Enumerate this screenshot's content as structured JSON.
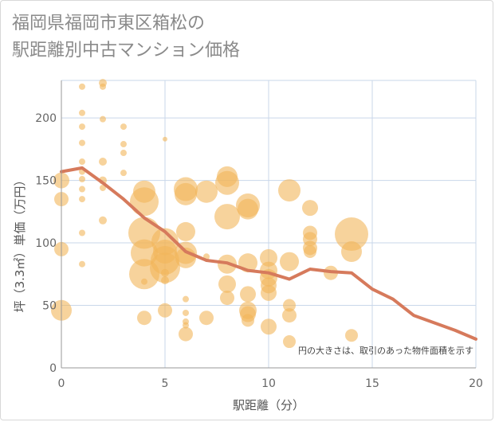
{
  "title_line1": "福岡県福岡市東区箱松の",
  "title_line2": "駅距離別中古マンション価格",
  "chart_data": {
    "type": "scatter",
    "xlabel": "駅距離（分）",
    "ylabel": "坪（3.3㎡）単価（万円）",
    "xlim": [
      0,
      20
    ],
    "ylim": [
      0,
      230
    ],
    "xticks": [
      0,
      5,
      10,
      15,
      20
    ],
    "yticks": [
      0,
      50,
      100,
      150,
      200
    ],
    "grid": true,
    "annotation": "円の大きさは、取引のあった物件面積を示す",
    "colors": {
      "bubble": "#f2b55a",
      "line": "#d67a5c",
      "grid": "#c9d7ea",
      "axis": "#999999"
    },
    "bubbles": [
      {
        "x": 0,
        "y": 150,
        "s": 10
      },
      {
        "x": 0,
        "y": 135,
        "s": 9
      },
      {
        "x": 0,
        "y": 95,
        "s": 9
      },
      {
        "x": 0,
        "y": 46,
        "s": 13
      },
      {
        "x": 1,
        "y": 225,
        "s": 4
      },
      {
        "x": 1,
        "y": 204,
        "s": 4
      },
      {
        "x": 1,
        "y": 193,
        "s": 4
      },
      {
        "x": 1,
        "y": 180,
        "s": 4
      },
      {
        "x": 1,
        "y": 165,
        "s": 4
      },
      {
        "x": 1,
        "y": 157,
        "s": 4
      },
      {
        "x": 1,
        "y": 151,
        "s": 4
      },
      {
        "x": 1,
        "y": 143,
        "s": 4
      },
      {
        "x": 1,
        "y": 135,
        "s": 4
      },
      {
        "x": 1,
        "y": 108,
        "s": 4
      },
      {
        "x": 1,
        "y": 83,
        "s": 4
      },
      {
        "x": 2,
        "y": 228,
        "s": 5
      },
      {
        "x": 2,
        "y": 225,
        "s": 4
      },
      {
        "x": 2,
        "y": 199,
        "s": 4
      },
      {
        "x": 2,
        "y": 165,
        "s": 5
      },
      {
        "x": 2,
        "y": 150,
        "s": 5
      },
      {
        "x": 2,
        "y": 144,
        "s": 4
      },
      {
        "x": 2,
        "y": 118,
        "s": 5
      },
      {
        "x": 3,
        "y": 193,
        "s": 4
      },
      {
        "x": 3,
        "y": 179,
        "s": 4
      },
      {
        "x": 3,
        "y": 172,
        "s": 4
      },
      {
        "x": 3,
        "y": 156,
        "s": 4
      },
      {
        "x": 4,
        "y": 141,
        "s": 14
      },
      {
        "x": 4,
        "y": 133,
        "s": 18
      },
      {
        "x": 4,
        "y": 108,
        "s": 20
      },
      {
        "x": 4,
        "y": 92,
        "s": 17
      },
      {
        "x": 4,
        "y": 75,
        "s": 19
      },
      {
        "x": 4,
        "y": 69,
        "s": 4
      },
      {
        "x": 4,
        "y": 40,
        "s": 9
      },
      {
        "x": 5,
        "y": 183,
        "s": 3
      },
      {
        "x": 5,
        "y": 101,
        "s": 17
      },
      {
        "x": 5,
        "y": 93,
        "s": 15
      },
      {
        "x": 5,
        "y": 86,
        "s": 18
      },
      {
        "x": 5,
        "y": 80,
        "s": 19
      },
      {
        "x": 5,
        "y": 76,
        "s": 5
      },
      {
        "x": 5,
        "y": 70,
        "s": 5
      },
      {
        "x": 5,
        "y": 46,
        "s": 9
      },
      {
        "x": 6,
        "y": 143,
        "s": 15
      },
      {
        "x": 6,
        "y": 139,
        "s": 14
      },
      {
        "x": 6,
        "y": 109,
        "s": 12
      },
      {
        "x": 6,
        "y": 92,
        "s": 14
      },
      {
        "x": 6,
        "y": 88,
        "s": 13
      },
      {
        "x": 6,
        "y": 55,
        "s": 4
      },
      {
        "x": 6,
        "y": 44,
        "s": 4
      },
      {
        "x": 6,
        "y": 37,
        "s": 4
      },
      {
        "x": 6,
        "y": 34,
        "s": 4
      },
      {
        "x": 6,
        "y": 27,
        "s": 9
      },
      {
        "x": 7,
        "y": 141,
        "s": 14
      },
      {
        "x": 7,
        "y": 89,
        "s": 4
      },
      {
        "x": 7,
        "y": 40,
        "s": 9
      },
      {
        "x": 8,
        "y": 153,
        "s": 13
      },
      {
        "x": 8,
        "y": 148,
        "s": 15
      },
      {
        "x": 8,
        "y": 121,
        "s": 16
      },
      {
        "x": 8,
        "y": 83,
        "s": 12
      },
      {
        "x": 8,
        "y": 67,
        "s": 11
      },
      {
        "x": 8,
        "y": 56,
        "s": 9
      },
      {
        "x": 9,
        "y": 130,
        "s": 15
      },
      {
        "x": 9,
        "y": 127,
        "s": 13
      },
      {
        "x": 9,
        "y": 84,
        "s": 12
      },
      {
        "x": 9,
        "y": 59,
        "s": 10
      },
      {
        "x": 9,
        "y": 46,
        "s": 11
      },
      {
        "x": 9,
        "y": 43,
        "s": 10
      },
      {
        "x": 9,
        "y": 38,
        "s": 8
      },
      {
        "x": 10,
        "y": 88,
        "s": 11
      },
      {
        "x": 10,
        "y": 78,
        "s": 11
      },
      {
        "x": 10,
        "y": 72,
        "s": 11
      },
      {
        "x": 10,
        "y": 66,
        "s": 10
      },
      {
        "x": 10,
        "y": 60,
        "s": 10
      },
      {
        "x": 10,
        "y": 33,
        "s": 10
      },
      {
        "x": 11,
        "y": 142,
        "s": 14
      },
      {
        "x": 11,
        "y": 85,
        "s": 12
      },
      {
        "x": 11,
        "y": 50,
        "s": 8
      },
      {
        "x": 11,
        "y": 42,
        "s": 9
      },
      {
        "x": 11,
        "y": 21,
        "s": 8
      },
      {
        "x": 12,
        "y": 128,
        "s": 10
      },
      {
        "x": 12,
        "y": 108,
        "s": 9
      },
      {
        "x": 12,
        "y": 103,
        "s": 9
      },
      {
        "x": 12,
        "y": 96,
        "s": 9
      },
      {
        "x": 12,
        "y": 93,
        "s": 8
      },
      {
        "x": 13,
        "y": 76,
        "s": 9
      },
      {
        "x": 14,
        "y": 107,
        "s": 21
      },
      {
        "x": 14,
        "y": 93,
        "s": 13
      },
      {
        "x": 14,
        "y": 26,
        "s": 8
      }
    ],
    "line": [
      {
        "x": 0,
        "y": 157
      },
      {
        "x": 1,
        "y": 160
      },
      {
        "x": 2,
        "y": 148
      },
      {
        "x": 3,
        "y": 135
      },
      {
        "x": 4,
        "y": 120
      },
      {
        "x": 5,
        "y": 109
      },
      {
        "x": 6,
        "y": 93
      },
      {
        "x": 7,
        "y": 86
      },
      {
        "x": 8,
        "y": 84
      },
      {
        "x": 9,
        "y": 78
      },
      {
        "x": 10,
        "y": 76
      },
      {
        "x": 11,
        "y": 71
      },
      {
        "x": 12,
        "y": 79
      },
      {
        "x": 13,
        "y": 77
      },
      {
        "x": 14,
        "y": 76
      },
      {
        "x": 15,
        "y": 63
      },
      {
        "x": 16,
        "y": 55
      },
      {
        "x": 17,
        "y": 42
      },
      {
        "x": 18,
        "y": 36
      },
      {
        "x": 19,
        "y": 30
      },
      {
        "x": 20,
        "y": 23
      }
    ]
  }
}
